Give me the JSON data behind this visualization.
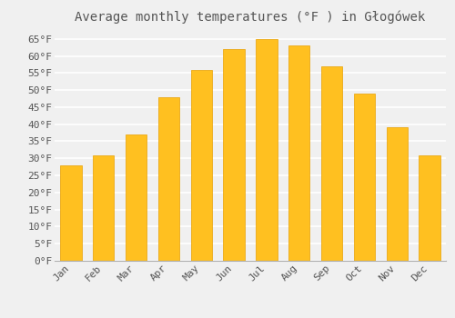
{
  "title": "Average monthly temperatures (°F ) in Głogówek",
  "months": [
    "Jan",
    "Feb",
    "Mar",
    "Apr",
    "May",
    "Jun",
    "Jul",
    "Aug",
    "Sep",
    "Oct",
    "Nov",
    "Dec"
  ],
  "values": [
    28,
    31,
    37,
    48,
    56,
    62,
    65,
    63,
    57,
    49,
    39,
    31
  ],
  "bar_color": "#FFC020",
  "bar_edge_color": "#E8A000",
  "background_color": "#F0F0F0",
  "grid_color": "#FFFFFF",
  "text_color": "#555555",
  "ylim": [
    0,
    68
  ],
  "yticks": [
    0,
    5,
    10,
    15,
    20,
    25,
    30,
    35,
    40,
    45,
    50,
    55,
    60,
    65
  ],
  "ylabel_suffix": "°F",
  "title_fontsize": 10,
  "tick_fontsize": 8,
  "font_family": "monospace"
}
